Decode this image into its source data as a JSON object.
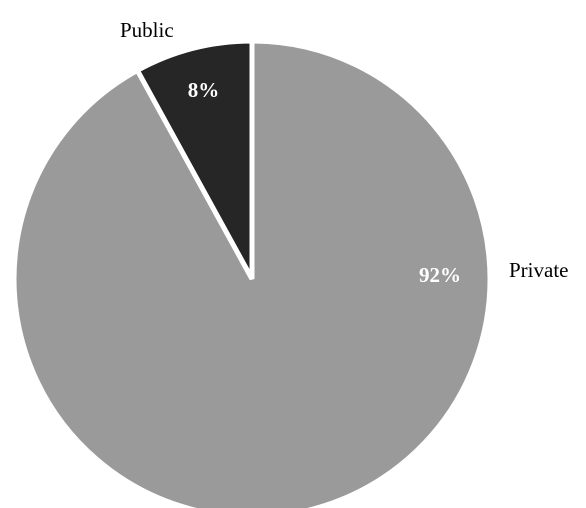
{
  "chart_data": {
    "type": "pie",
    "slices": [
      {
        "label": "Public",
        "value": 8,
        "value_label": "8%",
        "color": "#262626"
      },
      {
        "label": "Private",
        "value": 92,
        "value_label": "92%",
        "color": "#9a9a9a"
      }
    ],
    "start_angle": "12 o'clock",
    "direction": "counter-clockwise",
    "legend": "none"
  }
}
